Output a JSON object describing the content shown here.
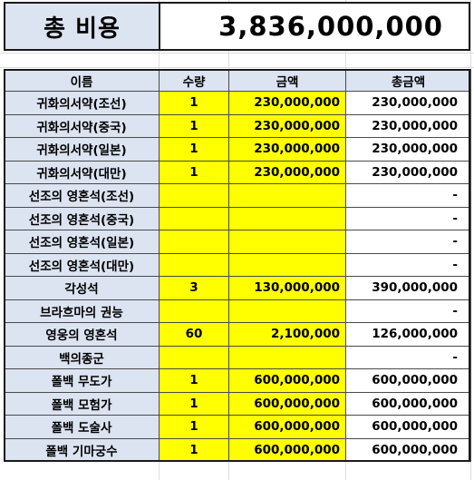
{
  "total": {
    "label": "총 비용",
    "value": "3,836,000,000"
  },
  "table": {
    "headers": [
      "이름",
      "수량",
      "금액",
      "총금액"
    ],
    "rows": [
      {
        "name": "귀화의서약(조선)",
        "qty": "1",
        "amount": "230,000,000",
        "total": "230,000,000"
      },
      {
        "name": "귀화의서약(중국)",
        "qty": "1",
        "amount": "230,000,000",
        "total": "230,000,000"
      },
      {
        "name": "귀화의서약(일본)",
        "qty": "1",
        "amount": "230,000,000",
        "total": "230,000,000"
      },
      {
        "name": "귀화의서약(대만)",
        "qty": "1",
        "amount": "230,000,000",
        "total": "230,000,000"
      },
      {
        "name": "선조의 영혼석(조선)",
        "qty": "",
        "amount": "",
        "total": "-"
      },
      {
        "name": "선조의 영혼석(중국)",
        "qty": "",
        "amount": "",
        "total": "-"
      },
      {
        "name": "선조의 영혼석(일본)",
        "qty": "",
        "amount": "",
        "total": "-"
      },
      {
        "name": "선조의 영혼석(대만)",
        "qty": "",
        "amount": "",
        "total": "-"
      },
      {
        "name": "각성석",
        "qty": "3",
        "amount": "130,000,000",
        "total": "390,000,000"
      },
      {
        "name": "브라흐마의 권능",
        "qty": "",
        "amount": "",
        "total": "-"
      },
      {
        "name": "영웅의 영혼석",
        "qty": "60",
        "amount": "2,100,000",
        "total": "126,000,000"
      },
      {
        "name": "백의종군",
        "qty": "",
        "amount": "",
        "total": "-"
      },
      {
        "name": "폴백 무도가",
        "qty": "1",
        "amount": "600,000,000",
        "total": "600,000,000"
      },
      {
        "name": "폴백 모험가",
        "qty": "1",
        "amount": "600,000,000",
        "total": "600,000,000"
      },
      {
        "name": "폴백 도술사",
        "qty": "1",
        "amount": "600,000,000",
        "total": "600,000,000"
      },
      {
        "name": "폴백 기마궁수",
        "qty": "1",
        "amount": "600,000,000",
        "total": "600,000,000"
      }
    ]
  },
  "colors": {
    "header_fill": "#dce3f1",
    "input_fill": "#ffff00",
    "border": "#1a1a1a"
  }
}
